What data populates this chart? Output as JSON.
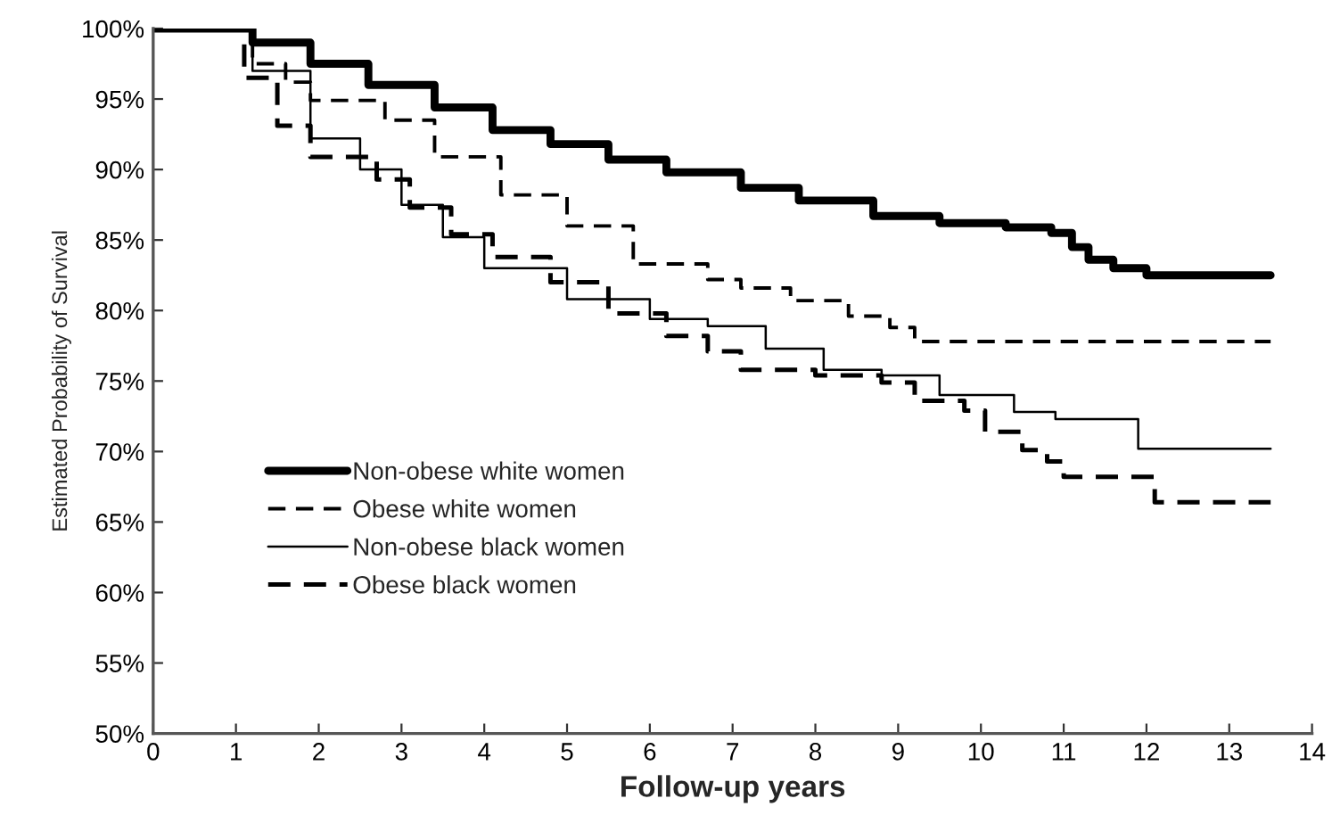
{
  "chart_data": {
    "type": "step",
    "xlabel": "Follow-up years",
    "ylabel": "Estimated Probability of Survival",
    "xlim": [
      0,
      14
    ],
    "xticks": [
      0,
      1,
      2,
      3,
      4,
      5,
      6,
      7,
      8,
      9,
      10,
      11,
      12,
      13,
      14
    ],
    "ylim": [
      50,
      100
    ],
    "yticks": [
      {
        "value": 50,
        "label": "50%"
      },
      {
        "value": 55,
        "label": "55%"
      },
      {
        "value": 60,
        "label": "60%"
      },
      {
        "value": 65,
        "label": "65%"
      },
      {
        "value": 70,
        "label": "70%"
      },
      {
        "value": 75,
        "label": "75%"
      },
      {
        "value": 80,
        "label": "80%"
      },
      {
        "value": 85,
        "label": "85%"
      },
      {
        "value": 90,
        "label": "90%"
      },
      {
        "value": 95,
        "label": "95%"
      },
      {
        "value": 100,
        "label": "100%"
      }
    ],
    "grid": false,
    "legend": "bottom left",
    "series": [
      {
        "name": "Non-obese white women",
        "color": "#000000",
        "line_style": "solid",
        "x": [
          0,
          0.7,
          1.2,
          1.9,
          2.6,
          3.4,
          4.1,
          4.8,
          5.5,
          6.2,
          7.1,
          7.8,
          8.7,
          9.5,
          10.3,
          10.85,
          11.1,
          11.3,
          11.6,
          12,
          13.5
        ],
        "values": [
          100,
          100,
          99,
          97.5,
          96,
          94.4,
          92.8,
          91.8,
          90.7,
          89.8,
          88.7,
          87.8,
          86.7,
          86.2,
          85.9,
          85.5,
          84.5,
          83.6,
          83,
          82.5,
          82.5
        ]
      },
      {
        "name": "Obese white women",
        "color": "#000000",
        "line_style": "dashed",
        "x": [
          0,
          0.8,
          1.2,
          1.6,
          1.9,
          2.8,
          3.4,
          4.2,
          5,
          5.8,
          6.7,
          7.1,
          7.7,
          8.4,
          8.9,
          9.2,
          13.5
        ],
        "values": [
          100,
          100,
          97.5,
          96.2,
          94.9,
          93.5,
          90.9,
          88.2,
          86,
          83.3,
          82.2,
          81.6,
          80.7,
          79.6,
          78.8,
          77.8,
          77.8
        ]
      },
      {
        "name": "Non-obese black women",
        "color": "#000000",
        "line_style": "solid",
        "x": [
          0,
          0.8,
          1.2,
          1.9,
          2.5,
          3,
          3.5,
          4,
          5,
          6,
          6.7,
          7.4,
          8.1,
          8.8,
          9.5,
          10.4,
          10.9,
          11.9,
          13.5
        ],
        "values": [
          100,
          100,
          97,
          92.2,
          90,
          87.5,
          85.2,
          83,
          80.8,
          79.4,
          78.9,
          77.3,
          75.8,
          75.4,
          74,
          72.8,
          72.3,
          70.2,
          70.2
        ]
      },
      {
        "name": "Obese black women",
        "color": "#000000",
        "line_style": "dashed",
        "x": [
          0,
          0.7,
          1.1,
          1.5,
          1.9,
          2.7,
          3.1,
          3.6,
          4.1,
          4.8,
          5.5,
          6.2,
          6.7,
          7.1,
          8,
          8.8,
          9.2,
          9.8,
          10.05,
          10.5,
          10.8,
          11,
          12.1,
          13.5
        ],
        "values": [
          100,
          100,
          96.5,
          93.1,
          90.9,
          89.3,
          87.3,
          85.4,
          83.8,
          82,
          79.8,
          78.2,
          77.1,
          75.8,
          75.4,
          74.9,
          73.6,
          72.9,
          71.4,
          70.1,
          69.3,
          68.2,
          66.4,
          66.4
        ]
      }
    ]
  }
}
